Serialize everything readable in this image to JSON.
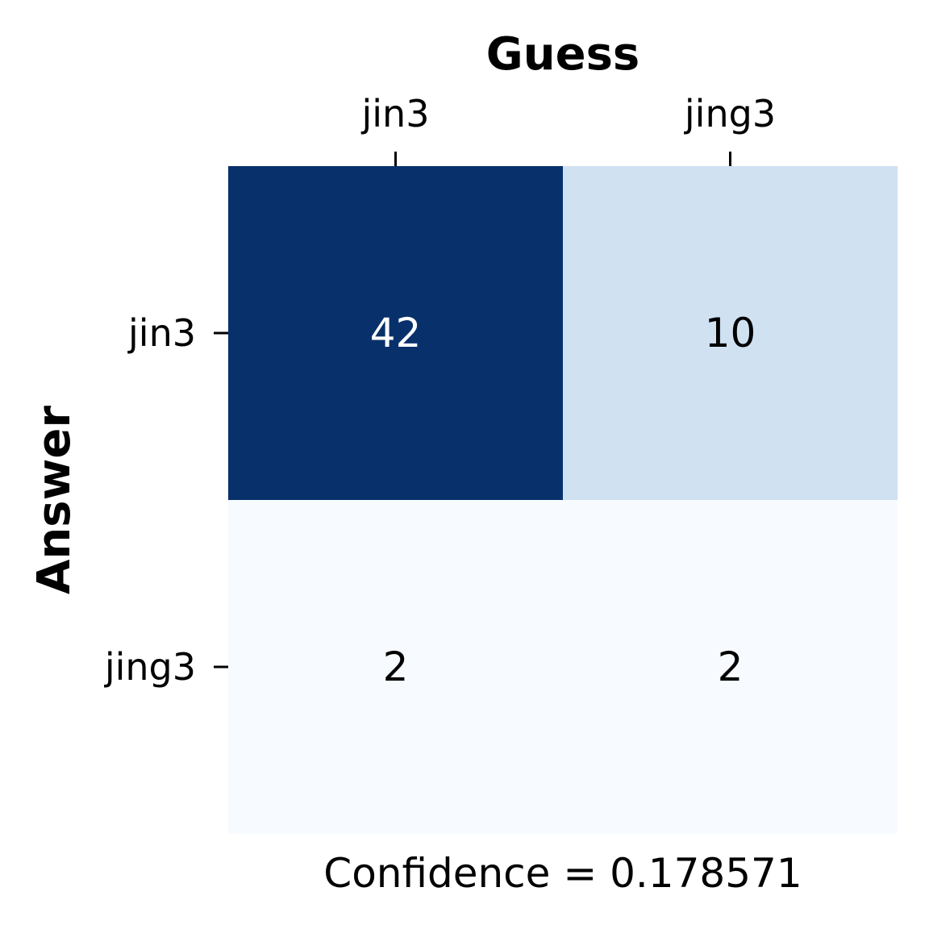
{
  "chart_data": {
    "type": "heatmap",
    "title": "Guess",
    "xlabel": "Guess",
    "ylabel": "Answer",
    "x_categories": [
      "jin3",
      "jing3"
    ],
    "y_categories": [
      "jin3",
      "jing3"
    ],
    "values": [
      [
        42,
        10
      ],
      [
        2,
        2
      ]
    ],
    "colormap": "Blues",
    "vmin": 2,
    "vmax": 42,
    "colorbar": false,
    "x_ticks_position": "top",
    "annotation": "Confidence = 0.178571"
  },
  "colors": {
    "max": "#08306b",
    "mid_light": "#d0e1f2",
    "min": "#f7fbff",
    "text_dark": "#000000",
    "text_light": "#ffffff"
  }
}
